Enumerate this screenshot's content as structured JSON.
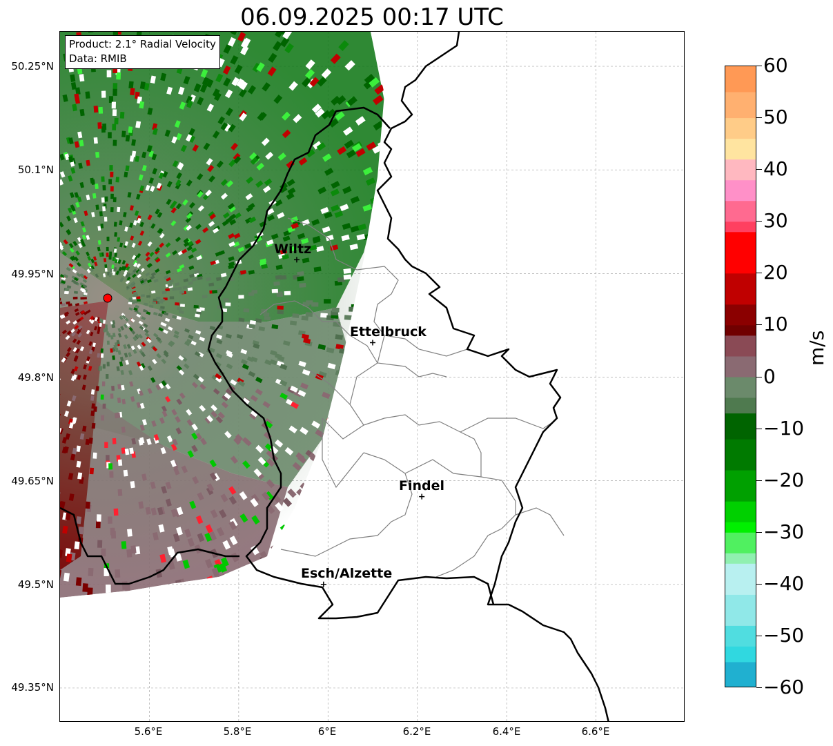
{
  "title": "06.09.2025 00:17 UTC",
  "info": {
    "product": "Product: 2.1° Radial Velocity",
    "source": "Data: RMIB"
  },
  "map": {
    "lon_range": [
      5.4,
      6.8
    ],
    "lat_range": [
      49.3,
      50.3
    ],
    "lat_ticks": [
      "50.25°N",
      "50.1°N",
      "49.95°N",
      "49.8°N",
      "49.65°N",
      "49.5°N",
      "49.35°N"
    ],
    "lon_ticks": [
      "5.6°E",
      "5.8°E",
      "6°E",
      "6.2°E",
      "6.4°E",
      "6.6°E"
    ],
    "grid": true,
    "radar_site": {
      "lon": 5.505,
      "lat": 49.915
    },
    "cities": [
      {
        "name": "Wiltz",
        "lon": 5.93,
        "lat": 49.97
      },
      {
        "name": "Ettelbruck",
        "lon": 6.1,
        "lat": 49.85
      },
      {
        "name": "Findel",
        "lon": 6.21,
        "lat": 49.627
      },
      {
        "name": "Esch/Alzette",
        "lon": 5.99,
        "lat": 49.5
      }
    ],
    "colors": {
      "dark_green": "#006400",
      "grey_green": "#5f7f5f",
      "mauve": "#8a6a72",
      "dark_red": "#7a0000",
      "bright_green": "#00e000",
      "border": "#000000",
      "canton_lines": "#808080"
    }
  },
  "colorbar": {
    "label": "m/s",
    "range": [
      -60,
      60
    ],
    "tick_labels": [
      "60",
      "50",
      "40",
      "30",
      "20",
      "10",
      "0",
      "−10",
      "−20",
      "−30",
      "−40",
      "−50",
      "−60"
    ]
  }
}
